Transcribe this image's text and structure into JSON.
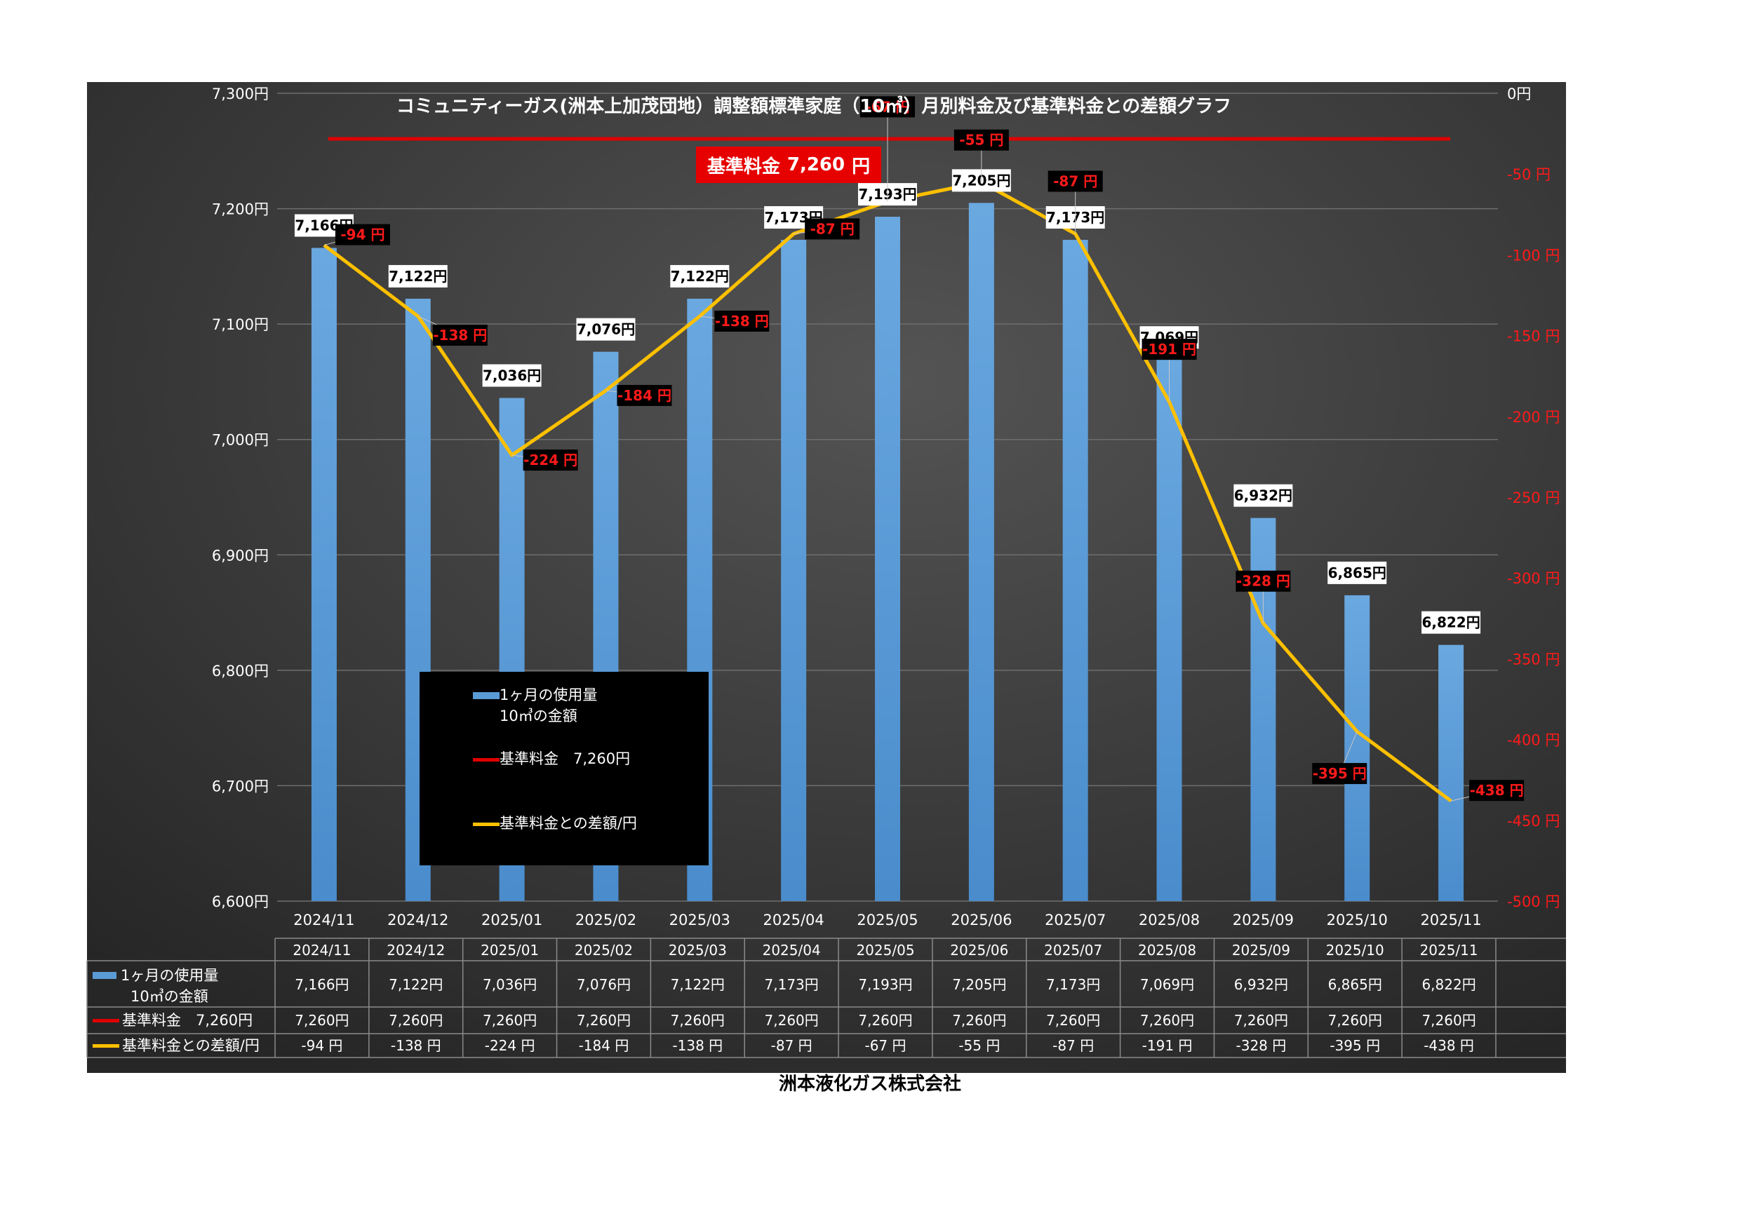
{
  "chart_data": {
    "type": "bar",
    "title": "コミュニティーガス(洲本上加茂団地）調整額標準家庭（10㎥）月別料金及び基準料金との差額グラフ",
    "categories": [
      "2024/11",
      "2024/12",
      "2025/01",
      "2025/02",
      "2025/03",
      "2025/04",
      "2025/05",
      "2025/06",
      "2025/07",
      "2025/08",
      "2025/09",
      "2025/10",
      "2025/11"
    ],
    "series": [
      {
        "name": "1ヶ月の使用量 10㎥の金額",
        "name_lines": [
          "1ヶ月の使用量",
          "10㎥の金額"
        ],
        "type": "bar",
        "axis": "left",
        "color": "#5b9bd5",
        "values": [
          7166,
          7122,
          7036,
          7076,
          7122,
          7173,
          7193,
          7205,
          7173,
          7069,
          6932,
          6865,
          6822
        ],
        "labels": [
          "7,166円",
          "7,122円",
          "7,036円",
          "7,076円",
          "7,122円",
          "7,173円",
          "7,193円",
          "7,205円",
          "7,173円",
          "7,069円",
          "6,932円",
          "6,865円",
          "6,822円"
        ]
      },
      {
        "name": "基準料金　7,260円",
        "type": "line",
        "axis": "left",
        "color": "#e00000",
        "values": [
          7260,
          7260,
          7260,
          7260,
          7260,
          7260,
          7260,
          7260,
          7260,
          7260,
          7260,
          7260,
          7260
        ],
        "labels": [
          "7,260円",
          "7,260円",
          "7,260円",
          "7,260円",
          "7,260円",
          "7,260円",
          "7,260円",
          "7,260円",
          "7,260円",
          "7,260円",
          "7,260円",
          "7,260円",
          "7,260円"
        ]
      },
      {
        "name": "基準料金との差額/円",
        "type": "line",
        "axis": "right",
        "color": "#ffc000",
        "values": [
          -94,
          -138,
          -224,
          -184,
          -138,
          -87,
          -67,
          -55,
          -87,
          -191,
          -328,
          -395,
          -438
        ],
        "labels": [
          "-94 円",
          "-138 円",
          "-224 円",
          "-184 円",
          "-138 円",
          "-87 円",
          "-67 円",
          "-55 円",
          "-87 円",
          "-191 円",
          "-328 円",
          "-395 円",
          "-438 円"
        ]
      }
    ],
    "y_left": {
      "ylim": [
        6600,
        7300
      ],
      "ticks": [
        6600,
        6700,
        6800,
        6900,
        7000,
        7100,
        7200,
        7300
      ],
      "tick_labels": [
        "6,600円",
        "6,700円",
        "6,800円",
        "6,900円",
        "7,000円",
        "7,100円",
        "7,200円",
        "7,300円"
      ]
    },
    "y_right": {
      "ylim": [
        -500,
        0
      ],
      "ticks": [
        0,
        -50,
        -100,
        -150,
        -200,
        -250,
        -300,
        -350,
        -400,
        -450,
        -500
      ],
      "tick_labels": [
        "0円",
        "-50 円",
        "-100 円",
        "-150 円",
        "-200 円",
        "-250 円",
        "-300 円",
        "-350 円",
        "-400 円",
        "-450 円",
        "-500 円"
      ]
    },
    "grid": true,
    "legend_position": "center-left inside plot"
  },
  "banner": {
    "label": "基準料金",
    "value": "7,260",
    "unit": "円"
  },
  "footer": "洲本液化ガス株式会社",
  "colors": {
    "background_dark": "#2e2e2e",
    "background_light": "#525252",
    "bar": "#5b9bd5",
    "base_line": "#e00000",
    "diff_line": "#ffc000",
    "right_axis": "#ff0000"
  }
}
